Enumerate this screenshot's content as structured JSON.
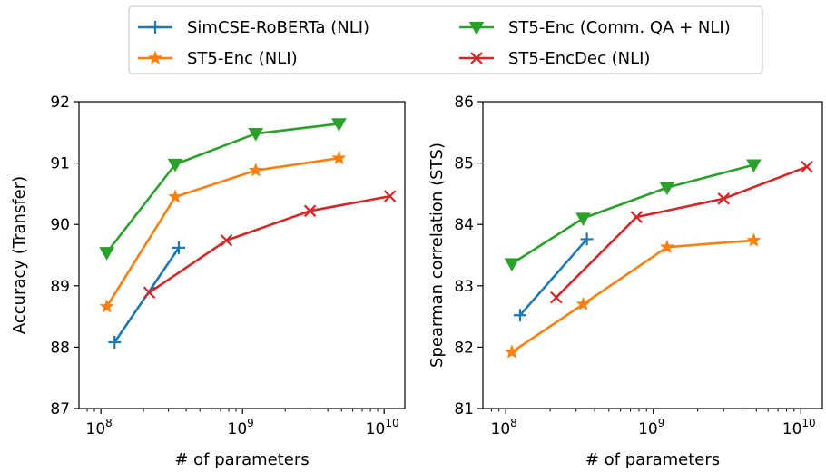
{
  "legend": {
    "entries": [
      {
        "label": "SimCSE-RoBERTa (NLI)",
        "series_index": 0
      },
      {
        "label": "ST5-Enc (NLI)",
        "series_index": 1
      },
      {
        "label": "ST5-Enc (Comm. QA + NLI)",
        "series_index": 2
      },
      {
        "label": "ST5-EncDec (NLI)",
        "series_index": 3
      }
    ],
    "placement": "top-center"
  },
  "chart_data": [
    {
      "type": "line",
      "xlabel": "# of parameters",
      "ylabel": "Accuracy (Transfer)",
      "xscale": "log",
      "xlim": [
        70000000,
        14000000000
      ],
      "ylim": [
        87,
        92
      ],
      "xticks": [
        {
          "base": "10",
          "exp": "8"
        },
        {
          "base": "10",
          "exp": "9"
        },
        {
          "base": "10",
          "exp": "10"
        }
      ],
      "yticks": [
        "87",
        "88",
        "89",
        "90",
        "91",
        "92"
      ],
      "grid": false,
      "series": [
        {
          "name": "SimCSE-RoBERTa (NLI)",
          "color": "#1f77b4",
          "marker": "plus",
          "x": [
            125000000,
            355000000
          ],
          "y": [
            88.08,
            89.62
          ]
        },
        {
          "name": "ST5-Enc (NLI)",
          "color": "#ff7f0e",
          "marker": "star",
          "x": [
            110000000,
            335000000,
            1240000000,
            4800000000
          ],
          "y": [
            88.66,
            90.45,
            90.88,
            91.08
          ]
        },
        {
          "name": "ST5-Enc (Comm. QA + NLI)",
          "color": "#2ca02c",
          "marker": "triangle-down",
          "x": [
            110000000,
            335000000,
            1240000000,
            4800000000
          ],
          "y": [
            89.54,
            90.98,
            91.48,
            91.64
          ]
        },
        {
          "name": "ST5-EncDec (NLI)",
          "color": "#d62728",
          "marker": "x",
          "x": [
            220000000,
            770000000,
            3000000000,
            11000000000
          ],
          "y": [
            88.89,
            89.74,
            90.22,
            90.46
          ]
        }
      ]
    },
    {
      "type": "line",
      "xlabel": "# of parameters",
      "ylabel": "Spearman correlation (STS)",
      "xscale": "log",
      "xlim": [
        70000000,
        14000000000
      ],
      "ylim": [
        81,
        86
      ],
      "xticks": [
        {
          "base": "10",
          "exp": "8"
        },
        {
          "base": "10",
          "exp": "9"
        },
        {
          "base": "10",
          "exp": "10"
        }
      ],
      "yticks": [
        "81",
        "82",
        "83",
        "84",
        "85",
        "86"
      ],
      "grid": false,
      "series": [
        {
          "name": "SimCSE-RoBERTa (NLI)",
          "color": "#1f77b4",
          "marker": "plus",
          "x": [
            125000000,
            355000000
          ],
          "y": [
            82.52,
            83.76
          ]
        },
        {
          "name": "ST5-Enc (NLI)",
          "color": "#ff7f0e",
          "marker": "star",
          "x": [
            110000000,
            335000000,
            1240000000,
            4800000000
          ],
          "y": [
            81.92,
            82.7,
            83.63,
            83.74
          ]
        },
        {
          "name": "ST5-Enc (Comm. QA + NLI)",
          "color": "#2ca02c",
          "marker": "triangle-down",
          "x": [
            110000000,
            335000000,
            1240000000,
            4800000000
          ],
          "y": [
            83.36,
            84.1,
            84.6,
            84.97
          ]
        },
        {
          "name": "ST5-EncDec (NLI)",
          "color": "#d62728",
          "marker": "x",
          "x": [
            220000000,
            770000000,
            3000000000,
            11000000000
          ],
          "y": [
            82.81,
            84.12,
            84.42,
            84.94
          ]
        }
      ]
    }
  ]
}
